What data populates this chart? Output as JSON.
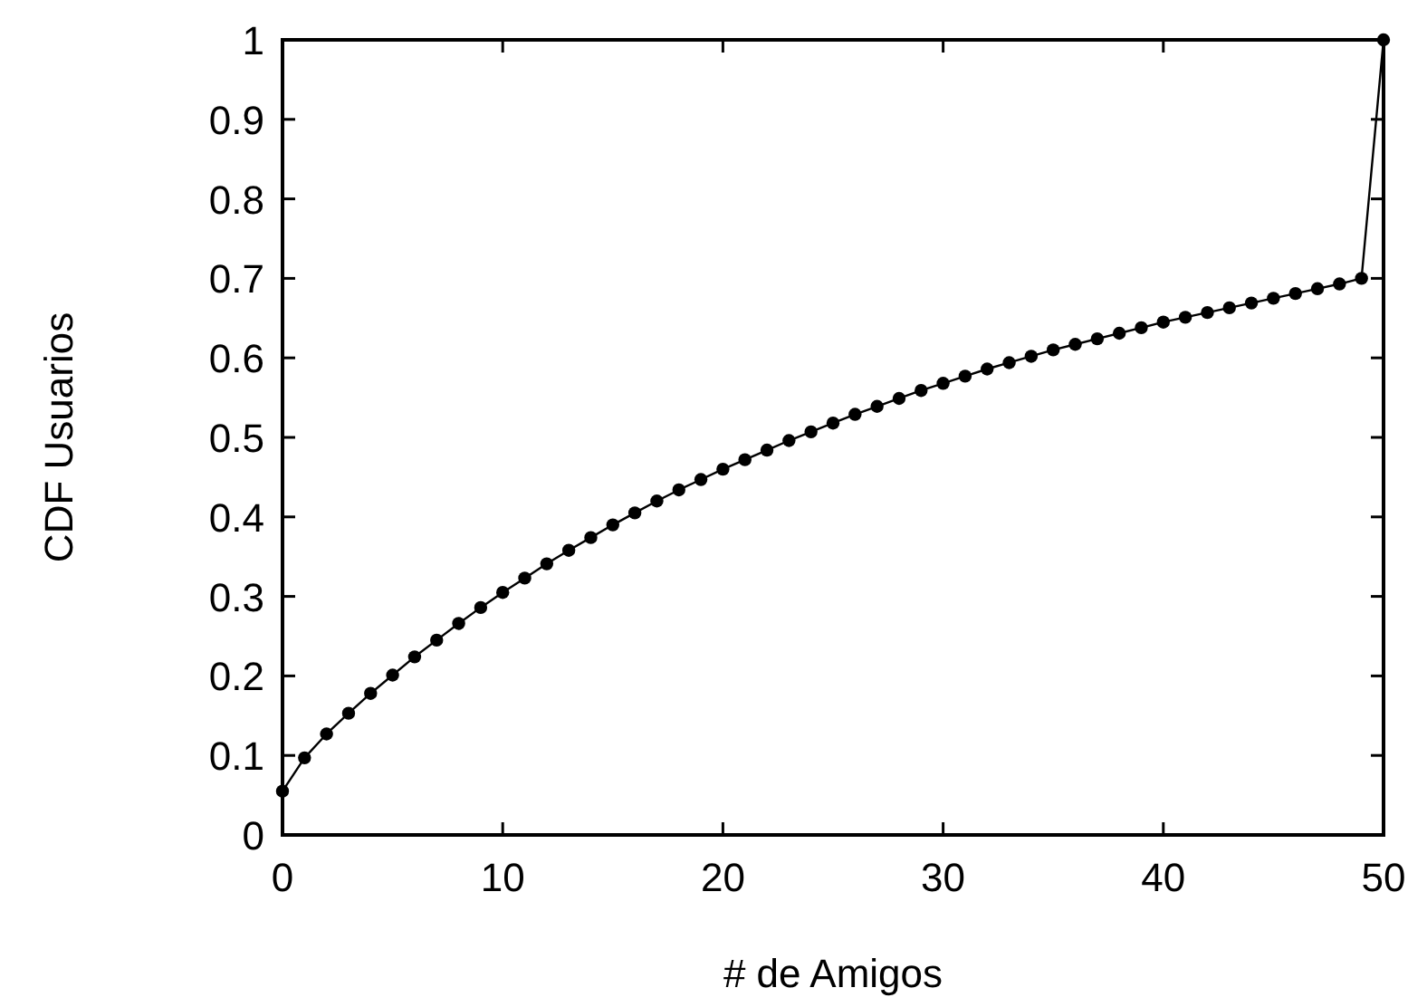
{
  "chart_data": {
    "type": "line",
    "xlabel": "# de Amigos",
    "ylabel": "CDF Usuarios",
    "x": [
      0,
      1,
      2,
      3,
      4,
      5,
      6,
      7,
      8,
      9,
      10,
      11,
      12,
      13,
      14,
      15,
      16,
      17,
      18,
      19,
      20,
      21,
      22,
      23,
      24,
      25,
      26,
      27,
      28,
      29,
      30,
      31,
      32,
      33,
      34,
      35,
      36,
      37,
      38,
      39,
      40,
      41,
      42,
      43,
      44,
      45,
      46,
      47,
      48,
      49,
      50
    ],
    "series": [
      {
        "color": "#000000",
        "values": [
          0.055,
          0.097,
          0.127,
          0.153,
          0.178,
          0.201,
          0.224,
          0.245,
          0.266,
          0.286,
          0.305,
          0.323,
          0.341,
          0.358,
          0.374,
          0.39,
          0.405,
          0.42,
          0.434,
          0.447,
          0.46,
          0.472,
          0.484,
          0.496,
          0.507,
          0.518,
          0.529,
          0.539,
          0.549,
          0.559,
          0.568,
          0.577,
          0.586,
          0.594,
          0.602,
          0.61,
          0.617,
          0.624,
          0.631,
          0.638,
          0.645,
          0.651,
          0.657,
          0.663,
          0.669,
          0.675,
          0.681,
          0.687,
          0.693,
          0.7,
          1.0
        ]
      }
    ],
    "xlim": [
      0,
      50
    ],
    "xticks": [
      0,
      10,
      20,
      30,
      40,
      50
    ],
    "ylim": [
      0,
      1
    ],
    "yticks": [
      0,
      0.1,
      0.2,
      0.3,
      0.4,
      0.5,
      0.6,
      0.7,
      0.8,
      0.9,
      1
    ],
    "grid": false,
    "marker": "circle",
    "line_style": "solid"
  }
}
